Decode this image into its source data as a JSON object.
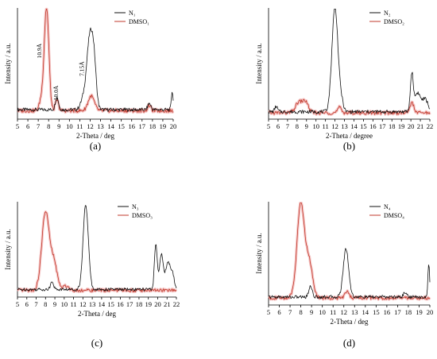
{
  "colors": {
    "series_N": "#111111",
    "series_DMSO": "#c0392b",
    "shadow_DMSO": "#f2b8b8"
  },
  "chart_data": [
    {
      "type": "line",
      "panel_label": "(a)",
      "xlabel": "2-Theta / deg",
      "ylabel": "Intensity / a.u.",
      "xlim": [
        5,
        20
      ],
      "xticks": [
        5,
        6,
        7,
        8,
        9,
        10,
        11,
        12,
        13,
        14,
        15,
        16,
        17,
        18,
        19,
        20
      ],
      "legend": {
        "position": "top-right",
        "entries": [
          "N₁",
          "DMSO₁"
        ]
      },
      "annotations": [
        "10.9Å",
        "10.0Å",
        "7.15Å"
      ],
      "series": [
        {
          "name": "N₁",
          "peaks": [
            [
              8.8,
              0.12,
              0.15
            ],
            [
              11.3,
              0.08,
              0.25
            ],
            [
              12.0,
              0.72,
              0.32
            ],
            [
              12.4,
              0.25,
              0.2
            ],
            [
              17.7,
              0.06,
              0.15
            ],
            [
              19.9,
              0.18,
              0.08
            ]
          ],
          "baseline": 0.06
        },
        {
          "name": "DMSO₁",
          "peaks": [
            [
              7.8,
              1.0,
              0.22
            ],
            [
              7.3,
              0.1,
              0.2
            ],
            [
              8.8,
              0.1,
              0.15
            ],
            [
              12.1,
              0.14,
              0.3
            ],
            [
              17.7,
              0.05,
              0.15
            ]
          ],
          "baseline": 0.05
        }
      ]
    },
    {
      "type": "line",
      "panel_label": "(b)",
      "xlabel": "2-Theta / degree",
      "ylabel": "Intensity / a.u.",
      "xlim": [
        5,
        22
      ],
      "xticks": [
        5,
        6,
        7,
        8,
        9,
        10,
        11,
        12,
        13,
        14,
        15,
        16,
        17,
        18,
        19,
        20,
        21,
        22
      ],
      "legend": {
        "position": "top-right",
        "entries": [
          "N₂",
          "DMSO₂"
        ]
      },
      "annotations": [],
      "series": [
        {
          "name": "N₂",
          "peaks": [
            [
              5.8,
              0.05,
              0.15
            ],
            [
              12.0,
              1.0,
              0.32
            ],
            [
              12.7,
              0.08,
              0.2
            ],
            [
              20.1,
              0.36,
              0.15
            ],
            [
              20.7,
              0.18,
              0.3
            ],
            [
              21.5,
              0.12,
              0.3
            ]
          ],
          "baseline": 0.04
        },
        {
          "name": "DMSO₂",
          "peaks": [
            [
              8.2,
              0.1,
              0.35
            ],
            [
              8.9,
              0.1,
              0.3
            ],
            [
              12.5,
              0.05,
              0.2
            ],
            [
              20.1,
              0.1,
              0.2
            ]
          ],
          "baseline": 0.03
        }
      ]
    },
    {
      "type": "line",
      "panel_label": "(c)",
      "xlabel": "2-Theta / deg",
      "ylabel": "Intensity / a.u.",
      "xlim": [
        5,
        22
      ],
      "xticks": [
        5,
        6,
        7,
        8,
        9,
        10,
        11,
        12,
        13,
        14,
        15,
        16,
        17,
        18,
        19,
        20,
        21,
        22
      ],
      "legend": {
        "position": "top-right",
        "entries": [
          "N₃",
          "DMSO₃"
        ]
      },
      "annotations": [],
      "series": [
        {
          "name": "N₃",
          "peaks": [
            [
              8.7,
              0.1,
              0.15
            ],
            [
              12.3,
              0.95,
              0.28
            ],
            [
              19.8,
              0.5,
              0.15
            ],
            [
              20.4,
              0.4,
              0.2
            ],
            [
              21.1,
              0.3,
              0.25
            ],
            [
              21.6,
              0.15,
              0.2
            ]
          ],
          "baseline": 0.05
        },
        {
          "name": "DMSO₃",
          "peaks": [
            [
              8.0,
              0.88,
              0.4
            ],
            [
              8.9,
              0.3,
              0.35
            ],
            [
              10.2,
              0.05,
              0.3
            ]
          ],
          "baseline": 0.04
        }
      ]
    },
    {
      "type": "line",
      "panel_label": "(d)",
      "xlabel": "2-Theta / deg",
      "ylabel": "Intensity / a.u.",
      "xlim": [
        5,
        20
      ],
      "xticks": [
        5,
        6,
        7,
        8,
        9,
        10,
        11,
        12,
        13,
        14,
        15,
        16,
        17,
        18,
        19,
        20
      ],
      "legend": {
        "position": "top-right",
        "entries": [
          "N₄",
          "DMSO₄"
        ]
      },
      "annotations": [],
      "series": [
        {
          "name": "N₄",
          "peaks": [
            [
              8.9,
              0.12,
              0.15
            ],
            [
              12.2,
              0.5,
              0.25
            ],
            [
              17.7,
              0.05,
              0.15
            ],
            [
              19.9,
              0.35,
              0.08
            ]
          ],
          "baseline": 0.05
        },
        {
          "name": "DMSO₄",
          "peaks": [
            [
              8.0,
              0.98,
              0.35
            ],
            [
              8.8,
              0.35,
              0.3
            ],
            [
              12.3,
              0.06,
              0.2
            ]
          ],
          "baseline": 0.04
        }
      ]
    }
  ]
}
